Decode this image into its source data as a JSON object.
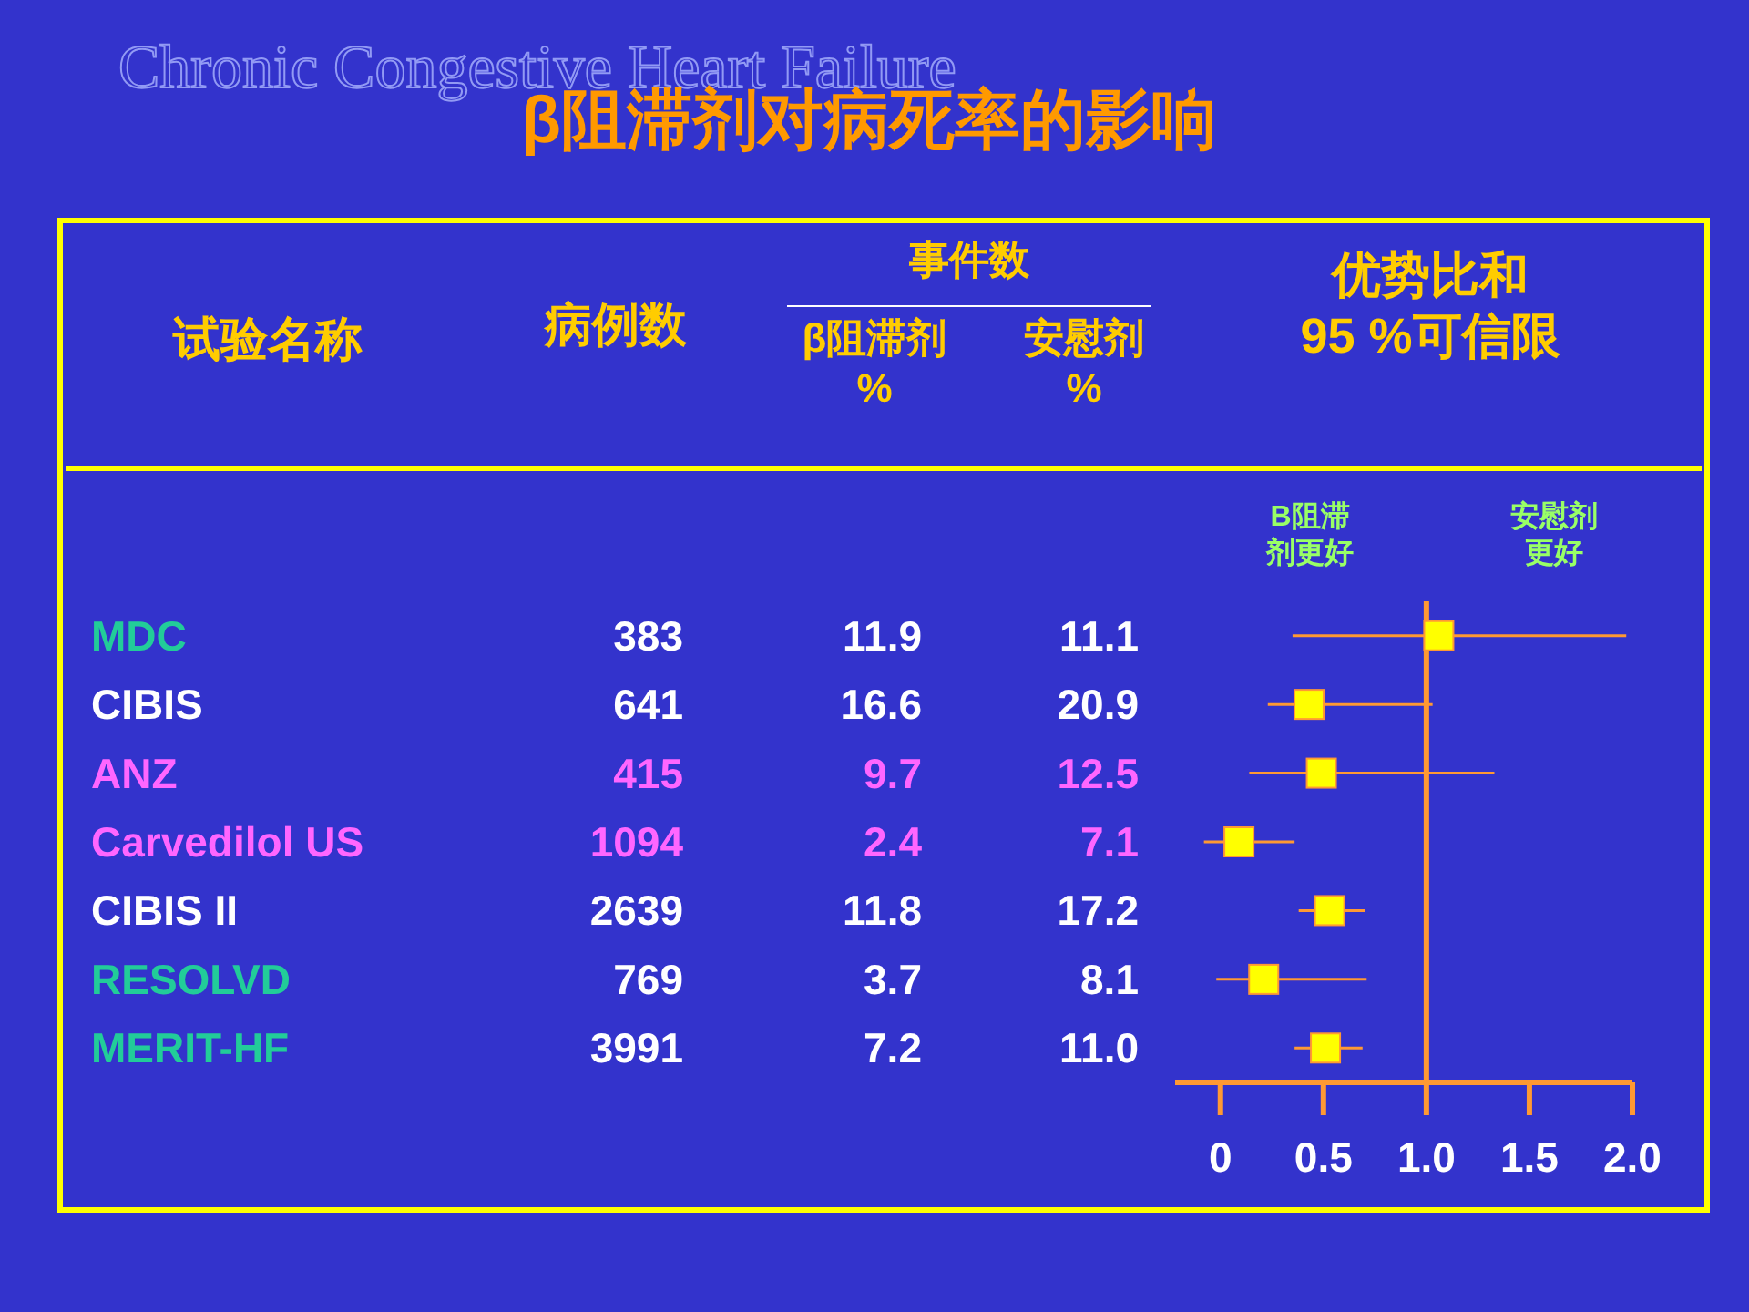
{
  "chart_data": {
    "type": "scatter",
    "orientation": "horizontal",
    "title": "β阻滞剂对病死率的影响",
    "subtitle": "Chronic Congestive Heart Failure",
    "categories": [
      null,
      null,
      null,
      null,
      null,
      null,
      null
    ],
    "series": [
      {
        "color": "#ffff00",
        "values": [
          1.06,
          0.43,
          0.49,
          0.09,
          0.53,
          0.21,
          0.51
        ],
        "errors": [
          [
            0.35,
            1.97
          ],
          [
            0.23,
            1.03
          ],
          [
            0.14,
            1.33
          ],
          [
            -0.08,
            0.36
          ],
          [
            0.38,
            0.7
          ],
          [
            -0.02,
            0.71
          ],
          [
            0.36,
            0.69
          ]
        ]
      }
    ],
    "marker": "square",
    "xlim": [
      -0.22,
      2.0
    ],
    "xticks": [
      0,
      0.5,
      {
        "value": 1,
        "label": "1.0"
      },
      1.5,
      {
        "value": 2,
        "label": "2.0"
      }
    ],
    "grid": false,
    "ref_lines": [
      {
        "axis": "x",
        "value": 1,
        "color": "#ff9933"
      }
    ],
    "annotations": [
      "试验名称",
      "病例数",
      "事件数",
      "β阻滞剂 %",
      "安慰剂 %",
      "优势比和 95 %可信限",
      "B阻滞剂更好",
      "安慰剂更好",
      "MDC",
      "383",
      "11.9",
      "11.1",
      "CIBIS",
      "641",
      "16.6",
      "20.9",
      "ANZ",
      "415",
      "9.7",
      "12.5",
      "Carvedilol US",
      "1094",
      "2.4",
      "7.1",
      "CIBIS II",
      "2639",
      "11.8",
      "17.2",
      "RESOLVD",
      "769",
      "3.7",
      "8.1",
      "MERIT-HF",
      "3991",
      "7.2",
      "11.0"
    ]
  }
}
